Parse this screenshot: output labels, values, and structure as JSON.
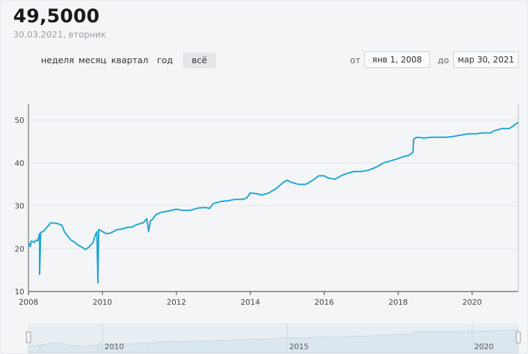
{
  "header": {
    "price": "49,5000",
    "date": "30.03.2021, вторник"
  },
  "periods": [
    {
      "label": "неделя",
      "active": false
    },
    {
      "label": "месяц",
      "active": false
    },
    {
      "label": "квартал",
      "active": false
    },
    {
      "label": "год",
      "active": false
    },
    {
      "label": "всё",
      "active": true
    }
  ],
  "range": {
    "from_label": "от",
    "from_value": "янв 1, 2008",
    "to_label": "до",
    "to_value": "мар 30, 2021"
  },
  "colors": {
    "line": "#1aa5d1",
    "grid": "#e2e4e7",
    "navigator_fill": "#dbe7ee"
  },
  "chart_data": {
    "type": "line",
    "title": "",
    "xlabel": "",
    "ylabel": "",
    "xlim": [
      2008.0,
      2021.25
    ],
    "ylim": [
      10,
      55
    ],
    "yticks": [
      10,
      20,
      30,
      40,
      50
    ],
    "xticks": [
      2008,
      2010,
      2012,
      2014,
      2016,
      2018,
      2020
    ],
    "grid": true,
    "legend": "none",
    "series": [
      {
        "values": [
          [
            2008.0,
            21.5
          ],
          [
            2008.05,
            20.5
          ],
          [
            2008.08,
            21.8
          ],
          [
            2008.15,
            21.4
          ],
          [
            2008.2,
            22.0
          ],
          [
            2008.25,
            21.8
          ],
          [
            2008.3,
            23.5
          ],
          [
            2008.3,
            14.0
          ],
          [
            2008.33,
            23.8
          ],
          [
            2008.4,
            24.0
          ],
          [
            2008.5,
            25.0
          ],
          [
            2008.6,
            26.0
          ],
          [
            2008.7,
            26.0
          ],
          [
            2008.8,
            25.8
          ],
          [
            2008.9,
            25.5
          ],
          [
            2008.97,
            24.0
          ],
          [
            2009.05,
            23.0
          ],
          [
            2009.15,
            22.0
          ],
          [
            2009.25,
            21.5
          ],
          [
            2009.35,
            20.8
          ],
          [
            2009.45,
            20.3
          ],
          [
            2009.55,
            19.8
          ],
          [
            2009.65,
            20.5
          ],
          [
            2009.75,
            21.5
          ],
          [
            2009.8,
            23.0
          ],
          [
            2009.85,
            24.0
          ],
          [
            2009.88,
            12.0
          ],
          [
            2009.9,
            24.5
          ],
          [
            2010.0,
            24.0
          ],
          [
            2010.1,
            23.5
          ],
          [
            2010.2,
            23.6
          ],
          [
            2010.3,
            24.0
          ],
          [
            2010.4,
            24.5
          ],
          [
            2010.5,
            24.5
          ],
          [
            2010.6,
            24.8
          ],
          [
            2010.7,
            25.0
          ],
          [
            2010.8,
            25.0
          ],
          [
            2010.9,
            25.5
          ],
          [
            2011.0,
            25.8
          ],
          [
            2011.1,
            26.0
          ],
          [
            2011.15,
            26.5
          ],
          [
            2011.2,
            27.0
          ],
          [
            2011.25,
            24.0
          ],
          [
            2011.3,
            26.5
          ],
          [
            2011.35,
            26.8
          ],
          [
            2011.45,
            28.0
          ],
          [
            2011.6,
            28.5
          ],
          [
            2011.8,
            28.8
          ],
          [
            2012.0,
            29.2
          ],
          [
            2012.2,
            28.9
          ],
          [
            2012.4,
            29.0
          ],
          [
            2012.6,
            29.5
          ],
          [
            2012.8,
            29.6
          ],
          [
            2012.9,
            29.4
          ],
          [
            2013.0,
            30.5
          ],
          [
            2013.2,
            31.0
          ],
          [
            2013.4,
            31.2
          ],
          [
            2013.6,
            31.5
          ],
          [
            2013.8,
            31.5
          ],
          [
            2013.9,
            31.8
          ],
          [
            2014.0,
            33.0
          ],
          [
            2014.2,
            32.8
          ],
          [
            2014.3,
            32.5
          ],
          [
            2014.5,
            33.0
          ],
          [
            2014.7,
            34.0
          ],
          [
            2014.9,
            35.5
          ],
          [
            2015.0,
            36.0
          ],
          [
            2015.1,
            35.5
          ],
          [
            2015.3,
            35.0
          ],
          [
            2015.5,
            35.0
          ],
          [
            2015.7,
            36.0
          ],
          [
            2015.85,
            37.0
          ],
          [
            2016.0,
            37.0
          ],
          [
            2016.1,
            36.5
          ],
          [
            2016.3,
            36.2
          ],
          [
            2016.45,
            37.0
          ],
          [
            2016.6,
            37.5
          ],
          [
            2016.8,
            38.0
          ],
          [
            2017.0,
            38.0
          ],
          [
            2017.2,
            38.3
          ],
          [
            2017.4,
            39.0
          ],
          [
            2017.6,
            40.0
          ],
          [
            2017.8,
            40.5
          ],
          [
            2018.0,
            41.0
          ],
          [
            2018.15,
            41.5
          ],
          [
            2018.3,
            41.8
          ],
          [
            2018.4,
            42.5
          ],
          [
            2018.42,
            45.5
          ],
          [
            2018.5,
            46.0
          ],
          [
            2018.7,
            45.8
          ],
          [
            2018.9,
            46.0
          ],
          [
            2019.1,
            46.0
          ],
          [
            2019.3,
            46.0
          ],
          [
            2019.5,
            46.2
          ],
          [
            2019.7,
            46.5
          ],
          [
            2019.9,
            46.8
          ],
          [
            2020.1,
            46.8
          ],
          [
            2020.3,
            47.0
          ],
          [
            2020.5,
            47.0
          ],
          [
            2020.6,
            47.5
          ],
          [
            2020.8,
            48.0
          ],
          [
            2021.0,
            48.0
          ],
          [
            2021.1,
            48.5
          ],
          [
            2021.2,
            49.2
          ],
          [
            2021.25,
            49.5
          ]
        ]
      }
    ]
  },
  "navigator": {
    "xticks": [
      "2010",
      "2015",
      "2020"
    ]
  }
}
